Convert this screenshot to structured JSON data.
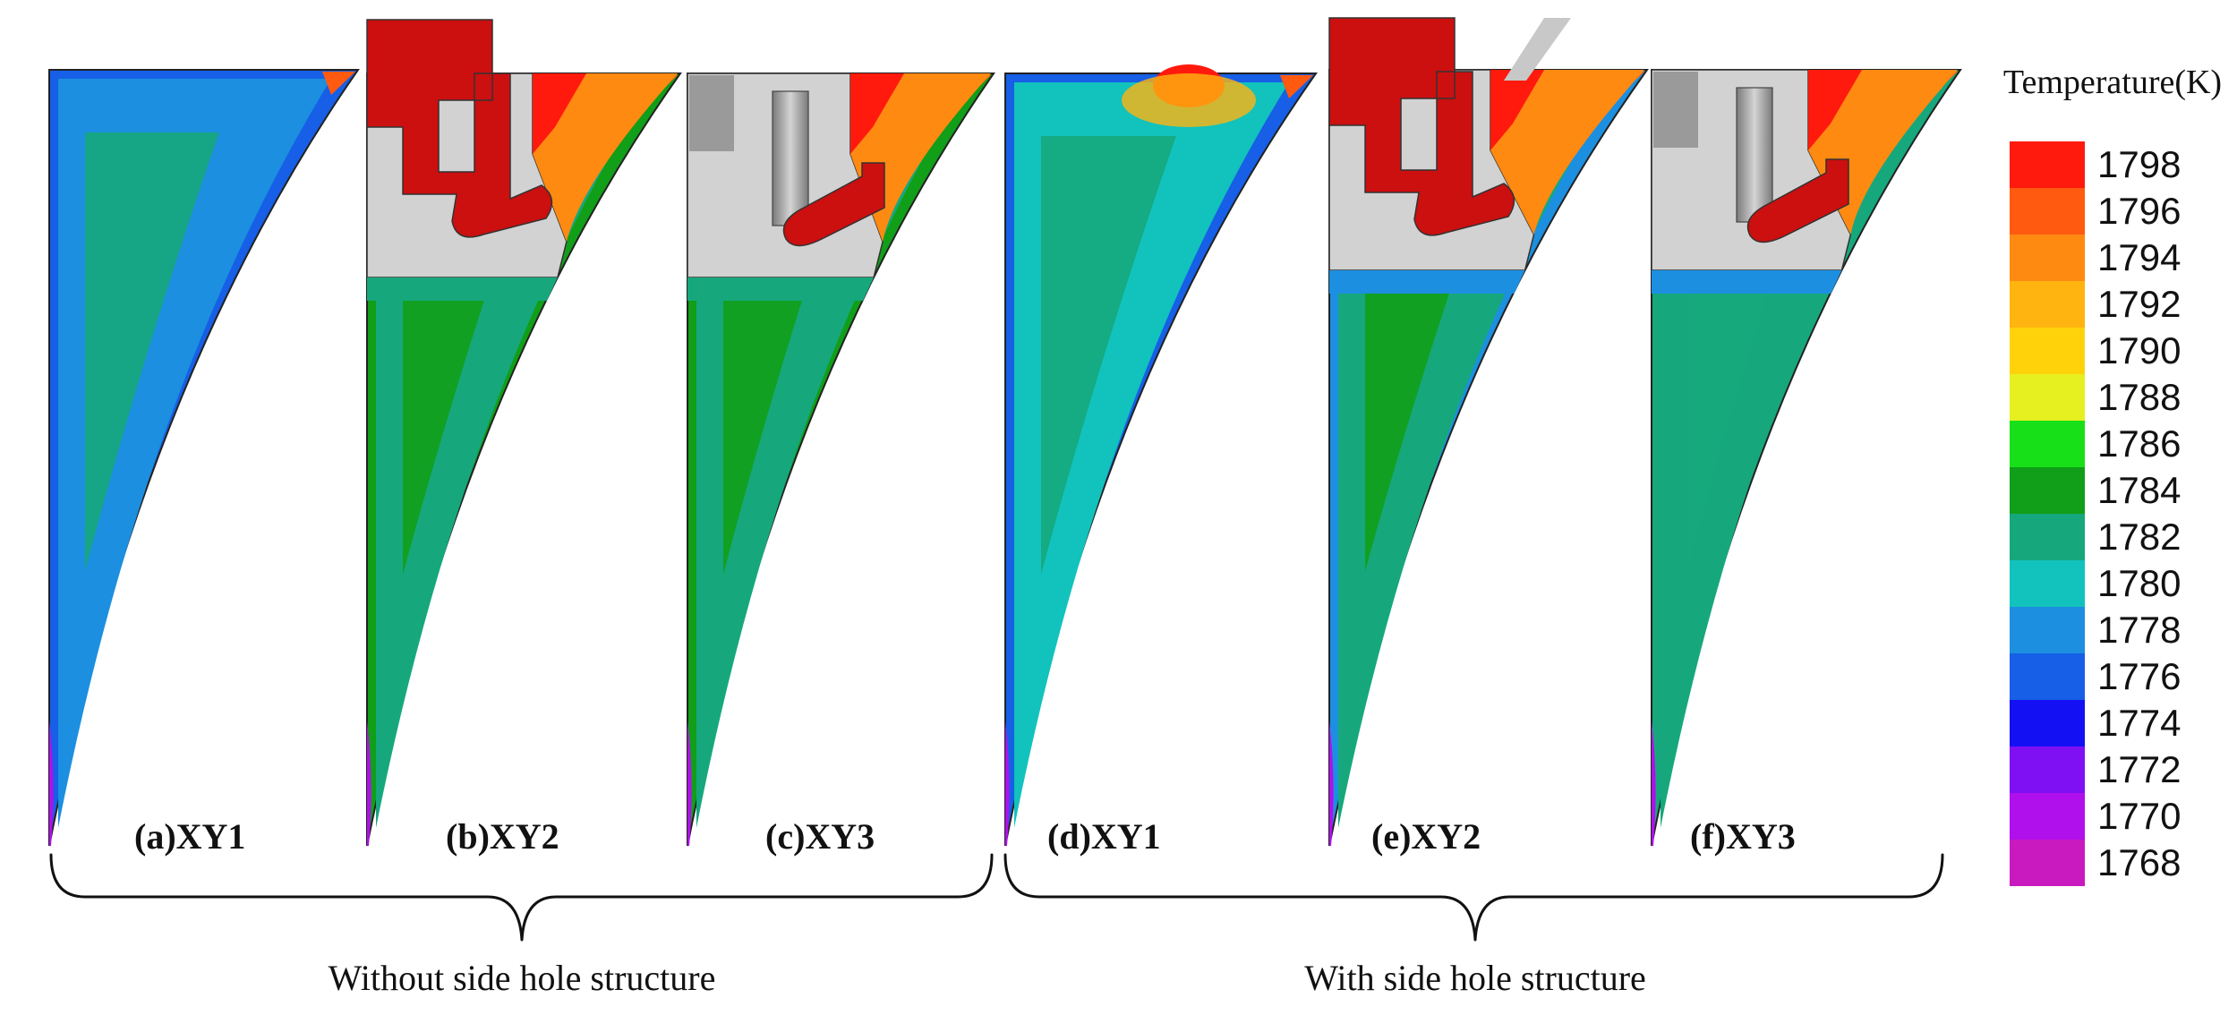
{
  "colorbar": {
    "title": "Temperature(K)",
    "ticks": [
      "1798",
      "1796",
      "1794",
      "1792",
      "1790",
      "1788",
      "1786",
      "1784",
      "1782",
      "1780",
      "1778",
      "1776",
      "1774",
      "1772",
      "1770",
      "1768"
    ],
    "colors": [
      "#ff1a0d",
      "#ff5a10",
      "#ff8a12",
      "#ffb410",
      "#ffd20a",
      "#e6ef20",
      "#18e018",
      "#119e18",
      "#16a87c",
      "#12c2bd",
      "#1c8fe0",
      "#165fe6",
      "#1410f4",
      "#7f10f4",
      "#b010ec",
      "#c91ac0"
    ]
  },
  "panels": [
    {
      "id": "a",
      "label": "(a)XY1",
      "has_gate": false,
      "side_hole": false,
      "main_color": "#1c8fe0",
      "inner_color": "#16a87c",
      "edge_color": "#165fe6"
    },
    {
      "id": "b",
      "label": "(b)XY2",
      "has_gate": true,
      "gate_variant": "tall",
      "side_hole": false,
      "main_color": "#16a87c",
      "inner_color": "#119e18",
      "edge_color": "#119e18"
    },
    {
      "id": "c",
      "label": "(c)XY3",
      "has_gate": true,
      "gate_variant": "rod",
      "side_hole": false,
      "main_color": "#16a87c",
      "inner_color": "#119e18",
      "edge_color": "#119e18"
    },
    {
      "id": "d",
      "label": "(d)XY1",
      "has_gate": false,
      "side_hole": true,
      "main_color": "#12c2bd",
      "inner_color": "#16a87c",
      "edge_color": "#165fe6"
    },
    {
      "id": "e",
      "label": "(e)XY2",
      "has_gate": true,
      "gate_variant": "tall",
      "side_hole": true,
      "main_color": "#16a87c",
      "inner_color": "#119e18",
      "edge_color": "#1c8fe0"
    },
    {
      "id": "f",
      "label": "(f)XY3",
      "has_gate": true,
      "gate_variant": "rod",
      "side_hole": true,
      "main_color": "#16a87c",
      "inner_color": "#16a87c",
      "edge_color": "#16a87c"
    }
  ],
  "groups": [
    {
      "label": "Without side hole structure"
    },
    {
      "label": "With side hole structure"
    }
  ]
}
